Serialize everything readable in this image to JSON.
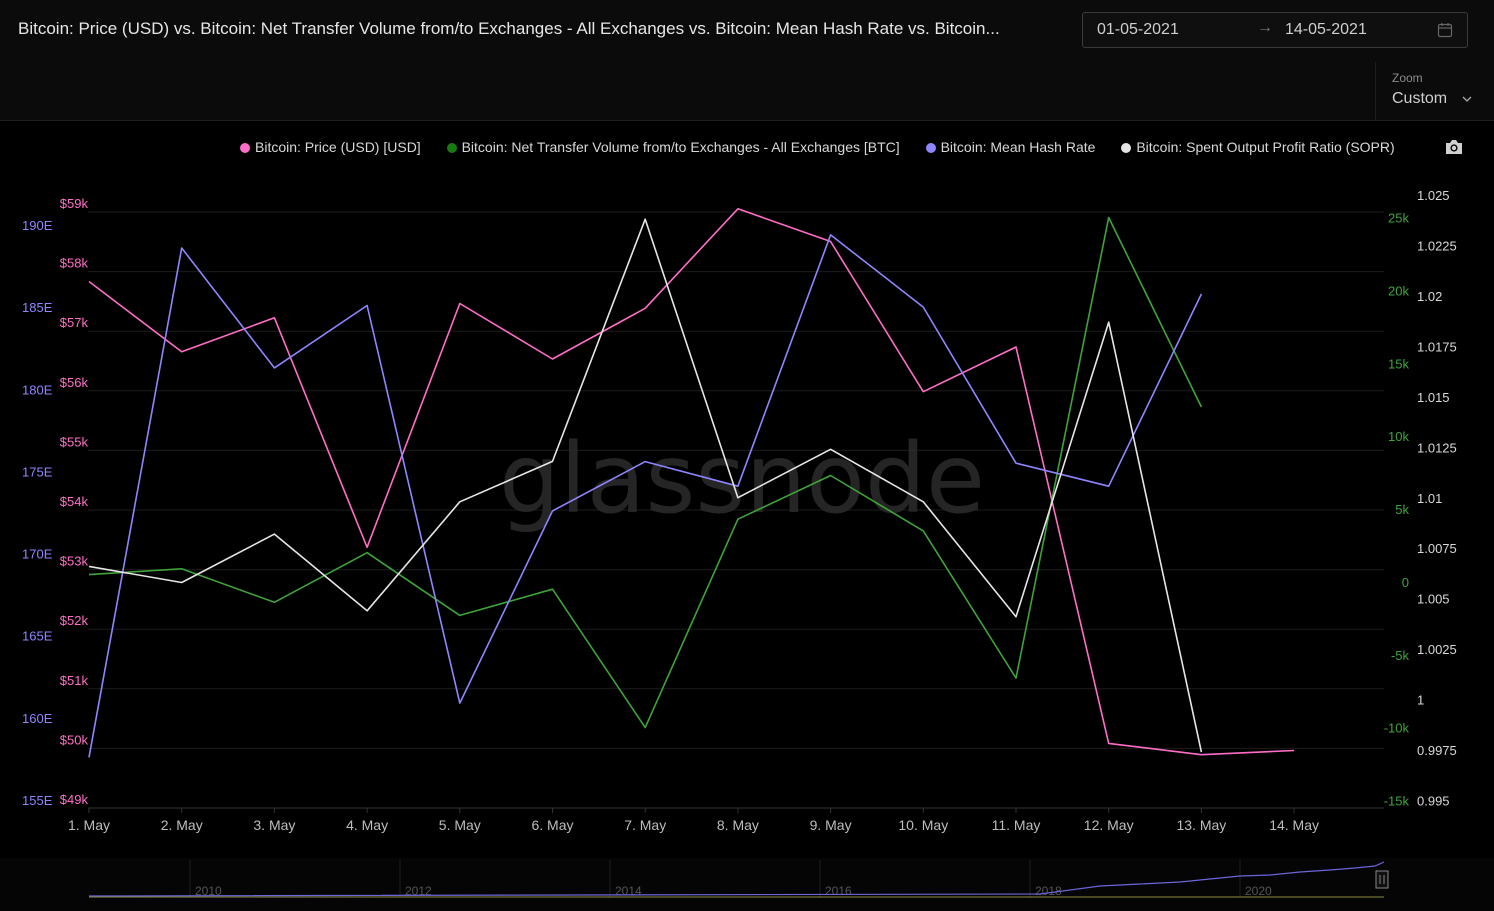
{
  "header": {
    "title": "Bitcoin: Price (USD) vs. Bitcoin: Net Transfer Volume from/to Exchanges - All Exchanges vs. Bitcoin: Mean Hash Rate vs. Bitcoin...",
    "date_from": "01-05-2021",
    "date_to": "14-05-2021",
    "arrow": "→"
  },
  "zoom": {
    "label": "Zoom",
    "value": "Custom"
  },
  "watermark": "glassnode",
  "colors": {
    "price": "#ff6ec7",
    "netflow": "#1a7a12",
    "hashrate": "#8f86ff",
    "sopr": "#e6e6e6",
    "background": "#000000",
    "grid": "#1c1c1c"
  },
  "chart_data": {
    "type": "line",
    "title": "Bitcoin: Price (USD) vs. Bitcoin: Net Transfer Volume from/to Exchanges - All Exchanges vs. Bitcoin: Mean Hash Rate vs. Bitcoin...",
    "x": [
      "1. May",
      "2. May",
      "3. May",
      "4. May",
      "5. May",
      "6. May",
      "7. May",
      "8. May",
      "9. May",
      "10. May",
      "11. May",
      "12. May",
      "13. May",
      "14. May"
    ],
    "series": [
      {
        "name": "Bitcoin: Price (USD) [USD]",
        "axis": "price",
        "values": [
          57700,
          56520,
          57090,
          53240,
          57330,
          56400,
          57250,
          58920,
          58370,
          55850,
          56600,
          49950,
          49760,
          49830
        ]
      },
      {
        "name": "Bitcoin: Net Transfer Volume from/to Exchanges - All Exchanges [BTC]",
        "axis": "netflow",
        "values": [
          500,
          900,
          -1400,
          2000,
          -2300,
          -500,
          -10000,
          4300,
          7300,
          3500,
          -6600,
          25000,
          12000,
          null
        ]
      },
      {
        "name": "Bitcoin: Mean Hash Rate",
        "axis": "hashrate",
        "values": [
          157.6,
          188.6,
          181.3,
          185.1,
          160.9,
          172.6,
          175.6,
          174.1,
          189.4,
          185.0,
          175.5,
          174.1,
          185.8,
          null
        ]
      },
      {
        "name": "Bitcoin: Spent Output Profit Ratio (SOPR)",
        "axis": "sopr",
        "values": [
          1.0066,
          1.0058,
          1.0082,
          1.0044,
          1.0098,
          1.0118,
          1.0238,
          1.01,
          1.0124,
          1.0098,
          1.0041,
          1.0187,
          0.9974,
          null
        ]
      }
    ],
    "axes": {
      "price": {
        "ticks": [
          "$49k",
          "$50k",
          "$51k",
          "$52k",
          "$53k",
          "$54k",
          "$55k",
          "$56k",
          "$57k",
          "$58k",
          "$59k"
        ],
        "range": [
          49000,
          59000
        ]
      },
      "hashrate": {
        "ticks": [
          "155E",
          "160E",
          "165E",
          "170E",
          "175E",
          "180E",
          "185E",
          "190E"
        ],
        "range": [
          155,
          190
        ]
      },
      "netflow": {
        "ticks": [
          "-15k",
          "-10k",
          "-5k",
          "0",
          "5k",
          "10k",
          "15k",
          "20k",
          "25k"
        ],
        "range": [
          -15000,
          25000
        ]
      },
      "sopr": {
        "ticks": [
          "0.995",
          "0.9975",
          "1",
          "1.0025",
          "1.005",
          "1.0075",
          "1.01",
          "1.0125",
          "1.015",
          "1.0175",
          "1.02",
          "1.0225",
          "1.025"
        ],
        "range": [
          0.995,
          1.025
        ]
      }
    },
    "navigator": {
      "ticks": [
        "2010",
        "2012",
        "2014",
        "2016",
        "2018",
        "2020"
      ]
    },
    "grid": true,
    "legend_position": "top"
  }
}
